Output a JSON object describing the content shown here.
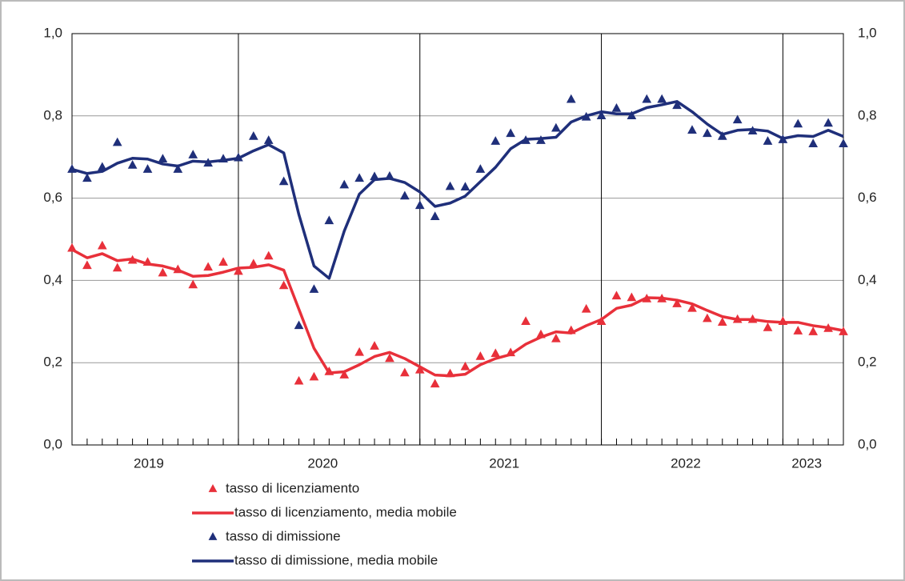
{
  "chart_data": {
    "type": "line",
    "categories": [
      "2019",
      null,
      null,
      null,
      null,
      null,
      null,
      null,
      null,
      null,
      null,
      "2020",
      null,
      null,
      null,
      null,
      null,
      null,
      null,
      null,
      null,
      null,
      null,
      "2021",
      null,
      null,
      null,
      null,
      null,
      null,
      null,
      null,
      null,
      null,
      null,
      "2022",
      null,
      null,
      null,
      null,
      null,
      null,
      null,
      null,
      null,
      null,
      null,
      "2023",
      null,
      null,
      null,
      null
    ],
    "series": [
      {
        "name": "tasso di licenziamento",
        "mode": "markers",
        "color": "#e8303a",
        "values": [
          0.478,
          0.436,
          0.484,
          0.43,
          0.449,
          0.444,
          0.418,
          0.426,
          0.389,
          0.432,
          0.444,
          0.422,
          0.44,
          0.459,
          0.387,
          0.155,
          0.165,
          0.178,
          0.17,
          0.225,
          0.24,
          0.21,
          0.175,
          0.182,
          0.148,
          0.173,
          0.19,
          0.215,
          0.222,
          0.224,
          0.3,
          0.268,
          0.258,
          0.278,
          0.33,
          0.3,
          0.362,
          0.358,
          0.355,
          0.355,
          0.343,
          0.332,
          0.307,
          0.298,
          0.305,
          0.305,
          0.285,
          0.3,
          0.277,
          0.275,
          0.283,
          0.275
        ]
      },
      {
        "name": "tasso di licenziamento, media mobile",
        "mode": "line",
        "color": "#e8303a",
        "values": [
          0.475,
          0.455,
          0.465,
          0.448,
          0.452,
          0.44,
          0.435,
          0.425,
          0.41,
          0.412,
          0.42,
          0.43,
          0.432,
          0.438,
          0.425,
          0.33,
          0.235,
          0.175,
          0.178,
          0.195,
          0.215,
          0.225,
          0.21,
          0.19,
          0.17,
          0.168,
          0.172,
          0.195,
          0.21,
          0.22,
          0.245,
          0.262,
          0.275,
          0.272,
          0.29,
          0.305,
          0.332,
          0.34,
          0.358,
          0.357,
          0.352,
          0.343,
          0.327,
          0.312,
          0.305,
          0.305,
          0.3,
          0.298,
          0.298,
          0.29,
          0.285,
          0.278
        ]
      },
      {
        "name": "tasso di dimissione",
        "mode": "markers",
        "color": "#1f2f7a",
        "values": [
          0.67,
          0.648,
          0.675,
          0.735,
          0.68,
          0.67,
          0.695,
          0.67,
          0.705,
          0.685,
          0.695,
          0.698,
          0.75,
          0.74,
          0.64,
          0.29,
          0.378,
          0.545,
          0.632,
          0.648,
          0.652,
          0.653,
          0.605,
          0.582,
          0.555,
          0.628,
          0.627,
          0.67,
          0.738,
          0.757,
          0.74,
          0.74,
          0.77,
          0.84,
          0.797,
          0.8,
          0.818,
          0.8,
          0.84,
          0.84,
          0.825,
          0.765,
          0.757,
          0.75,
          0.79,
          0.763,
          0.738,
          0.742,
          0.78,
          0.732,
          0.782,
          0.732
        ]
      },
      {
        "name": "tasso di dimissione, media mobile",
        "mode": "line",
        "color": "#1f2f7a",
        "values": [
          0.67,
          0.66,
          0.665,
          0.685,
          0.697,
          0.695,
          0.683,
          0.678,
          0.69,
          0.688,
          0.692,
          0.697,
          0.715,
          0.73,
          0.71,
          0.56,
          0.435,
          0.405,
          0.52,
          0.61,
          0.645,
          0.648,
          0.638,
          0.615,
          0.58,
          0.588,
          0.605,
          0.64,
          0.675,
          0.72,
          0.743,
          0.745,
          0.748,
          0.785,
          0.8,
          0.81,
          0.805,
          0.805,
          0.82,
          0.827,
          0.835,
          0.81,
          0.78,
          0.755,
          0.765,
          0.767,
          0.763,
          0.745,
          0.752,
          0.75,
          0.765,
          0.75
        ]
      }
    ],
    "ylim": [
      0,
      1
    ],
    "yticks": [
      {
        "value": 0,
        "label": "0,0"
      },
      {
        "value": 0.2,
        "label": "0,2"
      },
      {
        "value": 0.4,
        "label": "0,4"
      },
      {
        "value": 0.6,
        "label": "0,6"
      },
      {
        "value": 0.8,
        "label": "0,8"
      },
      {
        "value": 1,
        "label": "1,0"
      }
    ],
    "y2lim": [
      0,
      1
    ],
    "y2ticks": [
      {
        "value": 0,
        "label": "0,0"
      },
      {
        "value": 0.2,
        "label": "0,2"
      },
      {
        "value": 0.4,
        "label": "0,4"
      },
      {
        "value": 0.6,
        "label": "0,6"
      },
      {
        "value": 0.8,
        "label": "0,8"
      },
      {
        "value": 1,
        "label": "1,0"
      }
    ],
    "grid": true,
    "legend": "bottom"
  }
}
